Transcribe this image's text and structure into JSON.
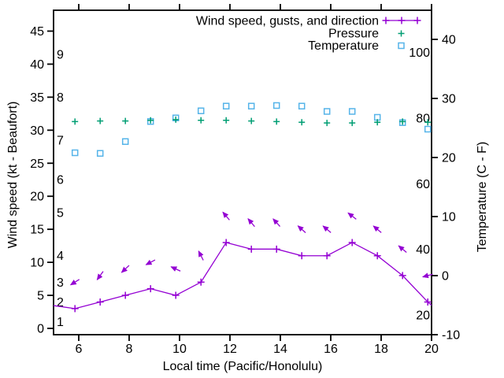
{
  "figure": {
    "background": "#ffffff",
    "text_color": "#000000",
    "legend_position": "top-right inside plot",
    "legend": [
      {
        "label": "Wind speed, gusts, and direction",
        "color": "#9400d3",
        "marker": "line-with-plus"
      },
      {
        "label": "Pressure",
        "color": "#009e73",
        "marker": "plus"
      },
      {
        "label": "Temperature",
        "color": "#56b4e9",
        "marker": "open-square"
      }
    ]
  },
  "chart_data": {
    "type": "line",
    "title": "",
    "xlabel": "Local time (Pacific/Honolulu)",
    "ylabel": "Wind speed (kt - Beaufort)",
    "y2label": "Temperature (C - F)",
    "grid": "off",
    "xlim": [
      5,
      20
    ],
    "ylim_left_kt": [
      -1,
      48.2
    ],
    "ylim_right_c": [
      -10,
      44.9
    ],
    "x_ticks": [
      6,
      8,
      10,
      12,
      14,
      16,
      18,
      20
    ],
    "y_ticks_left_kt": [
      0,
      5,
      10,
      15,
      20,
      25,
      30,
      35,
      40,
      45
    ],
    "y_ticks_right_c": [
      -10,
      0,
      10,
      20,
      30,
      40
    ],
    "beaufort_inner_labels": [
      {
        "label": "1",
        "kt": 1
      },
      {
        "label": "2",
        "kt": 4
      },
      {
        "label": "3",
        "kt": 7
      },
      {
        "label": "4",
        "kt": 11
      },
      {
        "label": "5",
        "kt": 17.5
      },
      {
        "label": "6",
        "kt": 22.5
      },
      {
        "label": "7",
        "kt": 28.5
      },
      {
        "label": "8",
        "kt": 35
      },
      {
        "label": "9",
        "kt": 41.5
      }
    ],
    "fahrenheit_inner_labels": [
      {
        "label": "20",
        "f": 20
      },
      {
        "label": "40",
        "f": 40
      },
      {
        "label": "60",
        "f": 60
      },
      {
        "label": "80",
        "f": 80
      },
      {
        "label": "100",
        "f": 100
      }
    ],
    "x": [
      5.85,
      6.85,
      7.85,
      8.85,
      9.85,
      10.85,
      11.85,
      12.85,
      13.85,
      14.85,
      15.85,
      16.85,
      17.85,
      18.85,
      19.85
    ],
    "series": [
      {
        "name": "Wind speed",
        "axis": "left-kt",
        "color": "#9400d3",
        "marker": "plus",
        "line": true,
        "values": [
          3,
          4,
          5,
          6,
          5,
          7,
          13,
          12,
          12,
          11,
          11,
          13,
          11,
          8,
          4
        ],
        "clip_start": {
          "x": 5.0,
          "kt": 3.45
        },
        "clip_end": {
          "x": 20.0,
          "kt": 3.5
        }
      },
      {
        "name": "Wind gusts with direction arrows",
        "axis": "left-kt",
        "color": "#9400d3",
        "marker": "direction-arrow",
        "line": false,
        "values": [
          7,
          8,
          9,
          10,
          9,
          11,
          17,
          16,
          16,
          15,
          15,
          17,
          15,
          12,
          8
        ],
        "arrow_angles_deg": [
          212,
          234,
          223,
          208,
          155,
          117,
          130,
          130,
          132,
          138,
          140,
          142,
          140,
          140,
          195
        ],
        "angle_convention": "0=east, 90=north; arrow points toward this direction"
      },
      {
        "name": "Pressure",
        "axis": "left-kt",
        "units": "unlabeled (read on left axis scale)",
        "color": "#009e73",
        "marker": "plus",
        "line": false,
        "values": [
          31.3,
          31.4,
          31.4,
          31.5,
          31.6,
          31.5,
          31.5,
          31.4,
          31.3,
          31.2,
          31.1,
          31.1,
          31.2,
          31.3,
          31.2
        ]
      },
      {
        "name": "Temperature",
        "axis": "right-c",
        "units": "C",
        "color": "#56b4e9",
        "marker": "open-square",
        "line": false,
        "values": [
          20.8,
          20.7,
          22.7,
          26.1,
          26.7,
          27.9,
          28.7,
          28.7,
          28.8,
          28.7,
          27.8,
          27.8,
          26.8,
          25.9,
          24.8
        ]
      }
    ]
  }
}
